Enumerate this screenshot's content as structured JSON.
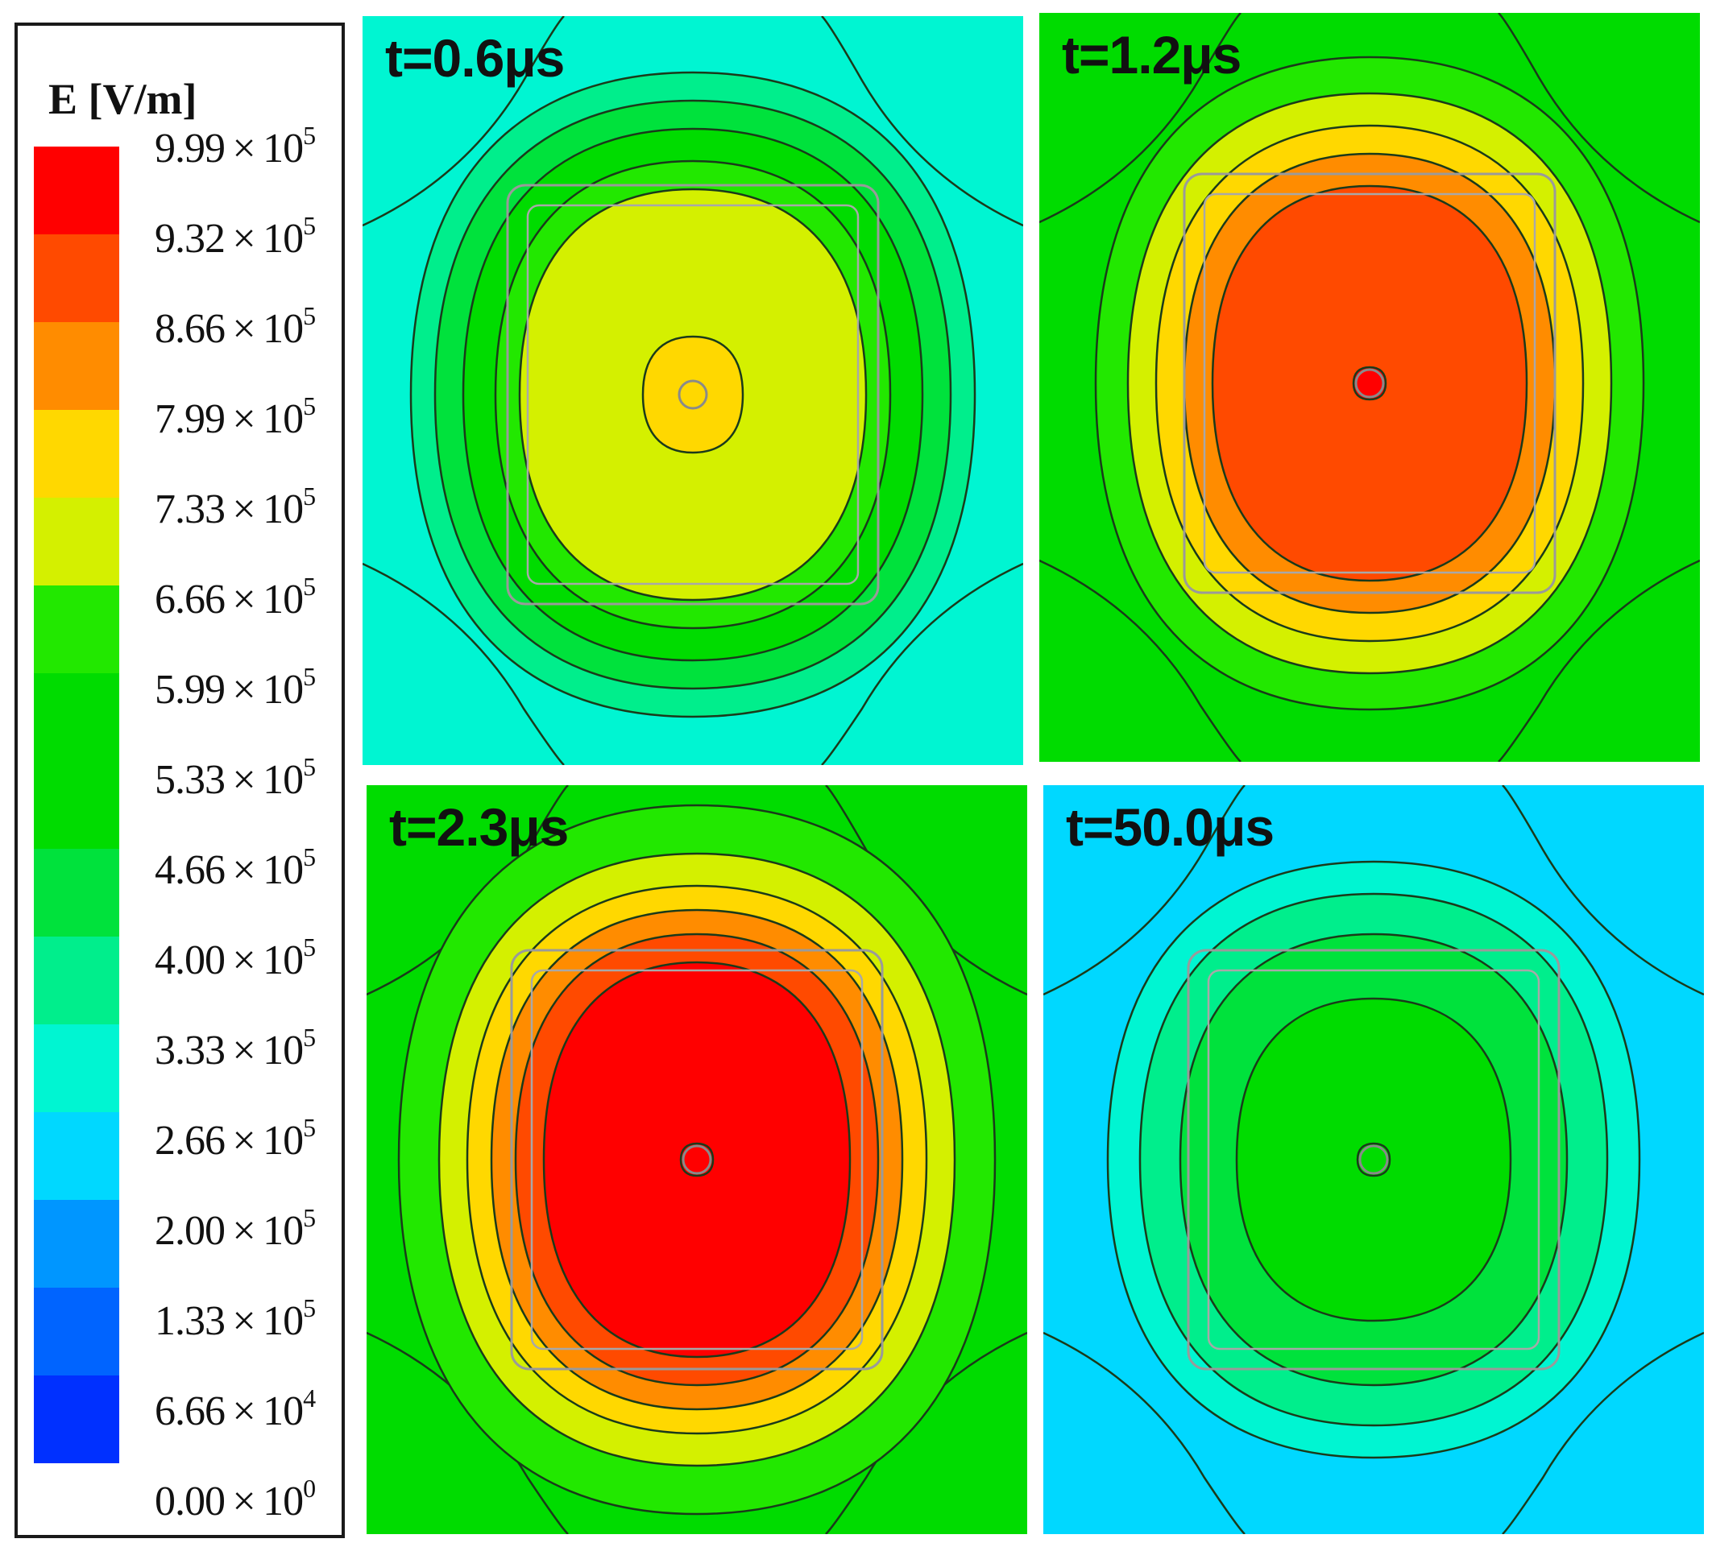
{
  "chart_data": {
    "type": "heatmap",
    "title": "",
    "quantity": "E",
    "units": "[V/m]",
    "colorbar": {
      "title": "E [V/m]",
      "levels": [
        {
          "mant": "9.99",
          "exp": "5",
          "value": 999000,
          "color": "#ff0000"
        },
        {
          "mant": "9.32",
          "exp": "5",
          "value": 932000,
          "color": "#ff4a00"
        },
        {
          "mant": "8.66",
          "exp": "5",
          "value": 866000,
          "color": "#ff8c00"
        },
        {
          "mant": "7.99",
          "exp": "5",
          "value": 799000,
          "color": "#ffd800"
        },
        {
          "mant": "7.33",
          "exp": "5",
          "value": 733000,
          "color": "#d4f000"
        },
        {
          "mant": "6.66",
          "exp": "5",
          "value": 666000,
          "color": "#22e800"
        },
        {
          "mant": "5.99",
          "exp": "5",
          "value": 599000,
          "color": "#00dc00"
        },
        {
          "mant": "5.33",
          "exp": "5",
          "value": 533000,
          "color": "#00dc00"
        },
        {
          "mant": "4.66",
          "exp": "5",
          "value": 466000,
          "color": "#00e23c"
        },
        {
          "mant": "4.00",
          "exp": "5",
          "value": 400000,
          "color": "#00ee8c"
        },
        {
          "mant": "3.33",
          "exp": "5",
          "value": 333000,
          "color": "#00f5d2"
        },
        {
          "mant": "2.66",
          "exp": "5",
          "value": 266000,
          "color": "#00d8ff"
        },
        {
          "mant": "2.00",
          "exp": "5",
          "value": 200000,
          "color": "#0096ff"
        },
        {
          "mant": "1.33",
          "exp": "5",
          "value": 133000,
          "color": "#0064ff"
        },
        {
          "mant": "6.66",
          "exp": "4",
          "value": 66600,
          "color": "#0030ff"
        },
        {
          "mant": "0.00",
          "exp": "0",
          "value": 0,
          "color": "#0000ff"
        }
      ]
    },
    "panels": [
      {
        "label": "t=0.6μs",
        "time_us": 0.6,
        "background": "#00f5d2",
        "peak_level": 7.99,
        "bands": [
          "#00ee8c",
          "#00e23c",
          "#00dc00",
          "#22e800",
          "#d4f000",
          "#ffd800"
        ]
      },
      {
        "label": "t=1.2μs",
        "time_us": 1.2,
        "background": "#00dc00",
        "peak_level": 9.99,
        "bands": [
          "#22e800",
          "#d4f000",
          "#ffd800",
          "#ff8c00",
          "#ff4a00",
          "#ff0000"
        ]
      },
      {
        "label": "t=2.3μs",
        "time_us": 2.3,
        "background": "#00dc00",
        "peak_level": 9.99,
        "bands": [
          "#22e800",
          "#d4f000",
          "#ffd800",
          "#ff8c00",
          "#ff4a00",
          "#ff0000",
          "#ff0000"
        ]
      },
      {
        "label": "t=50.0μs",
        "time_us": 50.0,
        "background": "#00d8ff",
        "peak_level": 5.33,
        "bands": [
          "#00f5d2",
          "#00ee8c",
          "#00e23c",
          "#00dc00",
          "#00dc00"
        ]
      }
    ]
  }
}
